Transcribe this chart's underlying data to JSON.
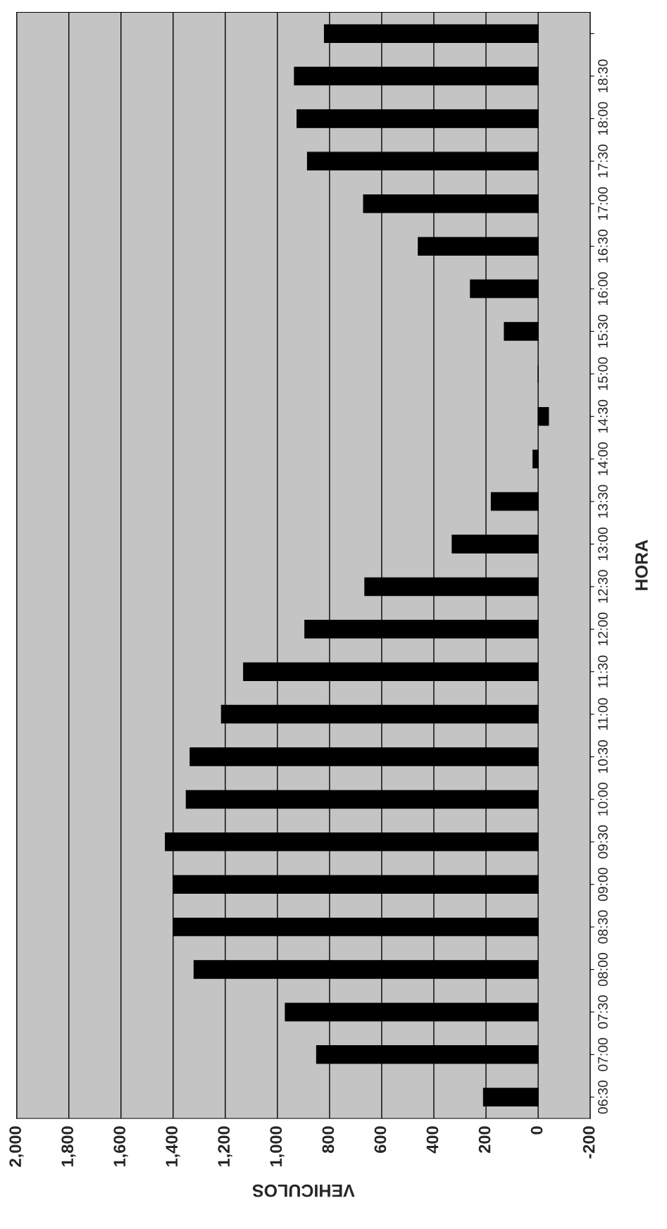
{
  "chart_data": {
    "type": "bar",
    "orientation": "horizontal",
    "xlabel": "VEHICULOS",
    "ylabel": "HORA",
    "categories": [
      null,
      "18:30",
      "18:00",
      "17:30",
      "17:00",
      "16:30",
      "16:00",
      "15:30",
      "15:00",
      "14:30",
      "14:00",
      "13:30",
      "13:00",
      "12:30",
      "12:00",
      "11:30",
      "11:00",
      "10:30",
      "10:00",
      "09:30",
      "09:00",
      "08:30",
      "08:00",
      "07:30",
      "07:00",
      "06:30"
    ],
    "values": [
      820,
      935,
      925,
      885,
      670,
      460,
      260,
      130,
      0,
      -40,
      20,
      180,
      330,
      665,
      895,
      1130,
      1215,
      1335,
      1350,
      1430,
      1400,
      1400,
      1320,
      970,
      850,
      210
    ],
    "color": "#000000",
    "xlim": [
      2000,
      -200
    ],
    "xticks": [
      {
        "value": 2000,
        "label": "2,000"
      },
      {
        "value": 1800,
        "label": "1,800"
      },
      {
        "value": 1600,
        "label": "1,600"
      },
      {
        "value": 1400,
        "label": "1,400"
      },
      {
        "value": 1200,
        "label": "1,200"
      },
      {
        "value": 1000,
        "label": "1,000"
      },
      800,
      600,
      400,
      200,
      0,
      {
        "value": -200,
        "label": "-200"
      }
    ],
    "grid": "x"
  }
}
